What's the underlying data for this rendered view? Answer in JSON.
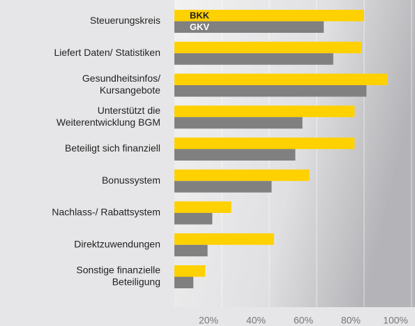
{
  "chart_data": {
    "type": "hbar",
    "categories": [
      [
        "Steuerungskreis"
      ],
      [
        "Liefert Daten/ Statistiken"
      ],
      [
        "Gesundheitsinfos/",
        "Kursangebote"
      ],
      [
        "Unterstützt die",
        "Weiterentwicklung BGM"
      ],
      [
        "Beteiligt sich finanziell"
      ],
      [
        "Bonussystem"
      ],
      [
        "Nachlass-/ Rabattsystem"
      ],
      [
        "Direktzuwendungen"
      ],
      [
        "Sonstige finanzielle",
        "Beteiligung"
      ]
    ],
    "series": [
      {
        "name": "BKK",
        "color": "#ffd100",
        "values": [
          80,
          79,
          90,
          76,
          76,
          57,
          24,
          42,
          13
        ]
      },
      {
        "name": "GKV",
        "color": "#808080",
        "values": [
          63,
          67,
          81,
          54,
          51,
          41,
          16,
          14,
          8
        ]
      }
    ],
    "xlim": [
      0,
      100
    ],
    "xticks": [
      {
        "value": 20,
        "label": "20%"
      },
      {
        "value": 40,
        "label": "40%"
      },
      {
        "value": 60,
        "label": "60%"
      },
      {
        "value": 80,
        "label": "80%"
      },
      {
        "value": 100,
        "label": "100%"
      }
    ],
    "grid": true,
    "legend": "inside"
  }
}
